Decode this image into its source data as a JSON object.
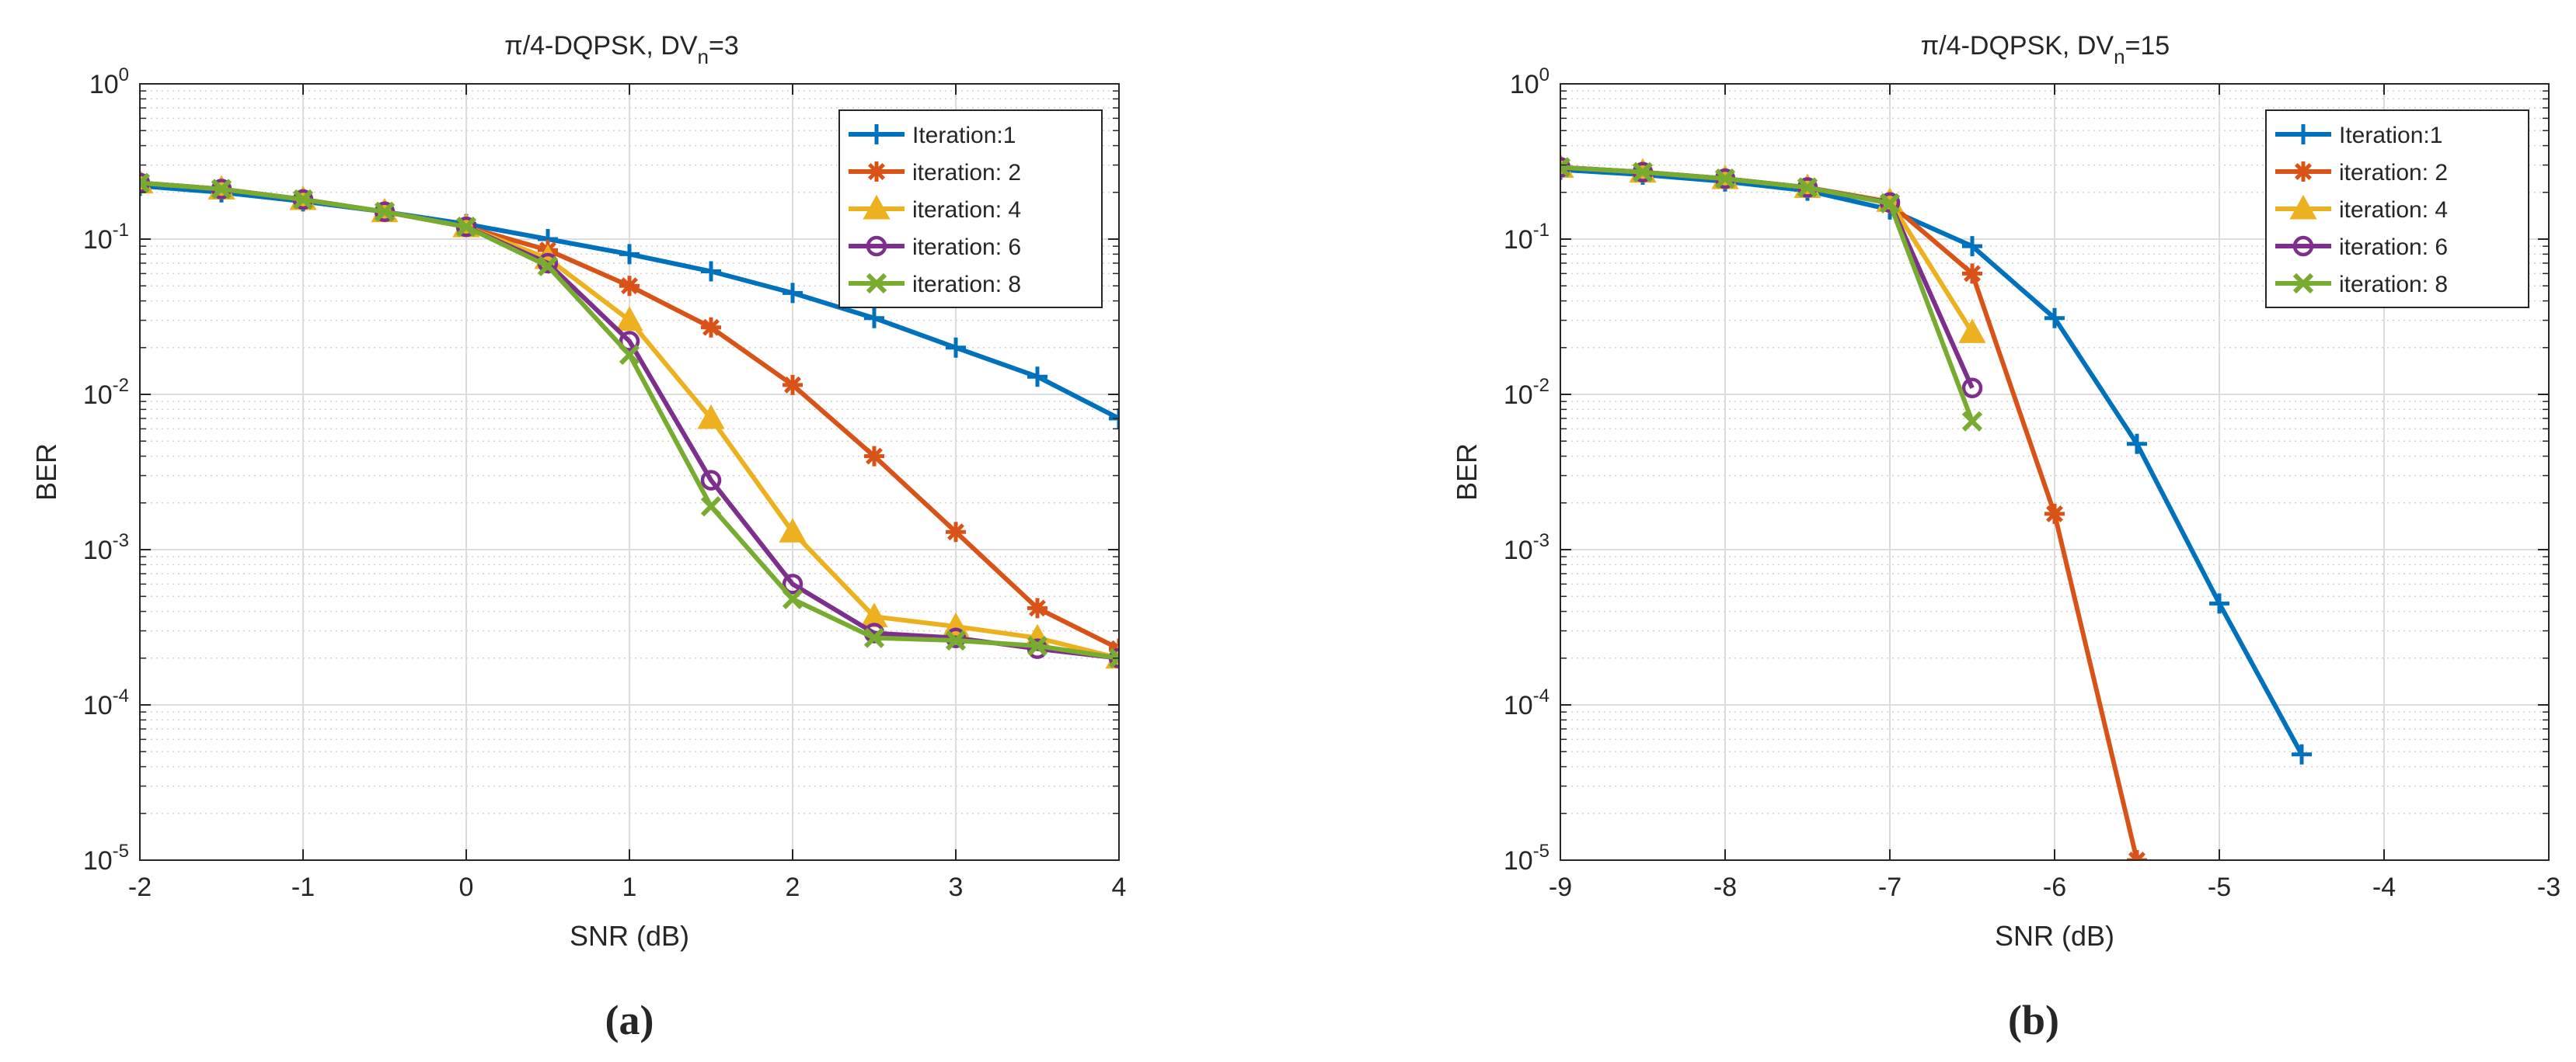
{
  "chart_data": [
    {
      "type": "line",
      "title": "π/4-DQPSK, DV_n=3",
      "title_main": "π/4-DQPSK, DV",
      "title_sub": "n",
      "title_suffix": "=3",
      "xlabel": "SNR (dB)",
      "ylabel": "BER",
      "xlim": [
        -2,
        4
      ],
      "ylim": [
        1e-05,
        1
      ],
      "yscale": "log",
      "xticks": [
        -2,
        -1,
        0,
        1,
        2,
        3,
        4
      ],
      "xtick_labels": [
        "-2",
        "-1",
        "0",
        "1",
        "2",
        "3",
        "4"
      ],
      "ytick_exponents": [
        -5,
        -4,
        -3,
        -2,
        -1,
        0
      ],
      "ytick_base": "10",
      "grid": true,
      "legend": "top-right",
      "caption": "(a)",
      "series": [
        {
          "name": "Iteration:1",
          "marker": "plus",
          "x": [
            -2,
            -1.5,
            -1,
            -0.5,
            0,
            0.5,
            1,
            1.5,
            2,
            2.5,
            3,
            3.5,
            4
          ],
          "y": [
            0.22,
            0.2,
            0.175,
            0.15,
            0.125,
            0.1,
            0.08,
            0.062,
            0.045,
            0.031,
            0.02,
            0.013,
            0.007
          ]
        },
        {
          "name": "iteration: 2",
          "marker": "asterisk",
          "x": [
            -2,
            -1.5,
            -1,
            -0.5,
            0,
            0.5,
            1,
            1.5,
            2,
            2.5,
            3,
            3.5,
            4
          ],
          "y": [
            0.23,
            0.21,
            0.18,
            0.15,
            0.12,
            0.085,
            0.05,
            0.027,
            0.0115,
            0.004,
            0.0013,
            0.00042,
            0.00023
          ]
        },
        {
          "name": "iteration: 4",
          "marker": "triangle",
          "x": [
            -2,
            -1.5,
            -1,
            -0.5,
            0,
            0.5,
            1,
            1.5,
            2,
            2.5,
            3,
            3.5,
            4
          ],
          "y": [
            0.23,
            0.21,
            0.18,
            0.15,
            0.12,
            0.075,
            0.03,
            0.007,
            0.0013,
            0.00037,
            0.00032,
            0.00027,
            0.0002
          ]
        },
        {
          "name": "iteration: 6",
          "marker": "circle",
          "x": [
            -2,
            -1.5,
            -1,
            -0.5,
            0,
            0.5,
            1,
            1.5,
            2,
            2.5,
            3,
            3.5,
            4
          ],
          "y": [
            0.23,
            0.21,
            0.18,
            0.15,
            0.12,
            0.07,
            0.022,
            0.0028,
            0.0006,
            0.00029,
            0.00027,
            0.00023,
            0.0002
          ]
        },
        {
          "name": "iteration: 8",
          "marker": "x",
          "x": [
            -2,
            -1.5,
            -1,
            -0.5,
            0,
            0.5,
            1,
            1.5,
            2,
            2.5,
            3,
            3.5,
            4
          ],
          "y": [
            0.23,
            0.21,
            0.18,
            0.15,
            0.12,
            0.067,
            0.018,
            0.0019,
            0.00048,
            0.00027,
            0.00026,
            0.00024,
            0.0002
          ]
        }
      ]
    },
    {
      "type": "line",
      "title": "π/4-DQPSK, DV_n=15",
      "title_main": "π/4-DQPSK, DV",
      "title_sub": "n",
      "title_suffix": "=15",
      "xlabel": "SNR (dB)",
      "ylabel": "BER",
      "xlim": [
        -9,
        -3
      ],
      "ylim": [
        1e-05,
        1
      ],
      "yscale": "log",
      "xticks": [
        -9,
        -8,
        -7,
        -6,
        -5,
        -4,
        -3
      ],
      "xtick_labels": [
        "-9",
        "-8",
        "-7",
        "-6",
        "-5",
        "-4",
        "-3"
      ],
      "ytick_exponents": [
        -5,
        -4,
        -3,
        -2,
        -1,
        0
      ],
      "ytick_base": "10",
      "grid": true,
      "legend": "top-right",
      "caption": "(b)",
      "series": [
        {
          "name": "Iteration:1",
          "marker": "plus",
          "x": [
            -9,
            -8.5,
            -8,
            -7.5,
            -7,
            -6.5,
            -6,
            -5.5,
            -5,
            -4.5
          ],
          "y": [
            0.28,
            0.26,
            0.235,
            0.205,
            0.155,
            0.09,
            0.031,
            0.0048,
            0.00045,
            4.8e-05
          ]
        },
        {
          "name": "iteration: 2",
          "marker": "asterisk",
          "x": [
            -9,
            -8.5,
            -8,
            -7.5,
            -7,
            -6.5,
            -6,
            -5.5
          ],
          "y": [
            0.29,
            0.27,
            0.245,
            0.215,
            0.17,
            0.06,
            0.0017,
            1e-05
          ]
        },
        {
          "name": "iteration: 4",
          "marker": "triangle",
          "x": [
            -9,
            -8.5,
            -8,
            -7.5,
            -7,
            -6.5
          ],
          "y": [
            0.29,
            0.27,
            0.245,
            0.215,
            0.175,
            0.025
          ]
        },
        {
          "name": "iteration: 6",
          "marker": "circle",
          "x": [
            -9,
            -8.5,
            -8,
            -7.5,
            -7,
            -6.5
          ],
          "y": [
            0.29,
            0.27,
            0.245,
            0.215,
            0.172,
            0.011
          ]
        },
        {
          "name": "iteration: 8",
          "marker": "x",
          "x": [
            -9,
            -8.5,
            -8,
            -7.5,
            -7,
            -6.5
          ],
          "y": [
            0.29,
            0.27,
            0.245,
            0.215,
            0.17,
            0.0067
          ]
        }
      ]
    }
  ],
  "colors": {
    "Iteration:1": "#0072BD",
    "iteration: 2": "#D95319",
    "iteration: 4": "#EDB120",
    "iteration: 6": "#7E2F8E",
    "iteration: 8": "#77AC30",
    "axis": "#262626",
    "grid_major": "#dcdcdc",
    "grid_minor": "#d0d0d0"
  }
}
